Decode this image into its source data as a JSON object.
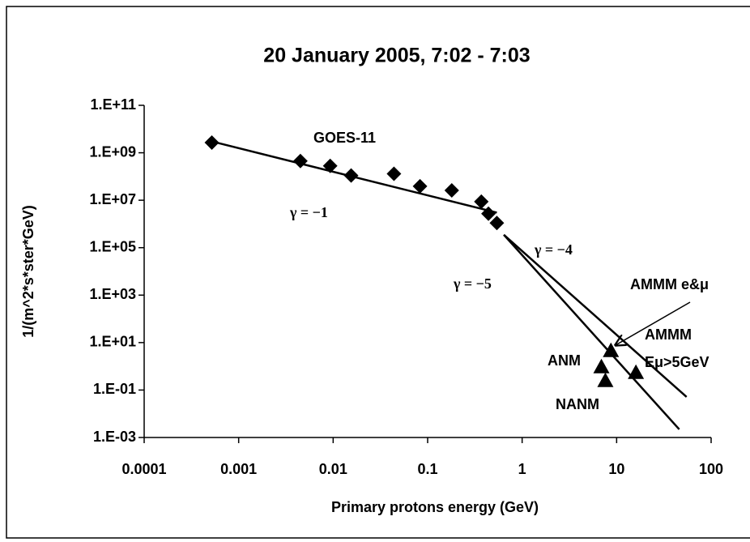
{
  "chart_data": {
    "type": "scatter",
    "title": "20 January 2005, 7:02 - 7:03",
    "x_label": "Primary protons energy (GeV)",
    "y_label": "1/(m^2*s*ster*GeV)",
    "log_x": true,
    "log_y": true,
    "grid": false,
    "xlim": [
      0.0001,
      100
    ],
    "xticks": [
      0.0001,
      0.001,
      0.01,
      0.1,
      1,
      10,
      100
    ],
    "ylim": [
      0.001,
      100000000000
    ],
    "yticks": [
      {
        "value": 0.001,
        "label": "1.E-03"
      },
      {
        "value": 0.1,
        "label": "1.E-01"
      },
      {
        "value": 10,
        "label": "1.E+01"
      },
      {
        "value": 1000,
        "label": "1.E+03"
      },
      {
        "value": 100000,
        "label": "1.E+05"
      },
      {
        "value": 10000000,
        "label": "1.E+07"
      },
      {
        "value": 1000000000,
        "label": "1.E+09"
      },
      {
        "value": 100000000000,
        "label": "1.E+11"
      }
    ],
    "series": [
      {
        "marker": "diamond",
        "line": false,
        "color": "#000000",
        "x": [
          0.00052,
          0.0045,
          0.0093,
          0.0155,
          0.044,
          0.083,
          0.18,
          0.37,
          0.44,
          0.54
        ],
        "values": [
          2700000000,
          450000000,
          280000000,
          110000000,
          130000000,
          39000000,
          26000000,
          8700000,
          2700000,
          1100000
        ]
      },
      {
        "marker": "triangle",
        "line": false,
        "color": "#000000",
        "x": [
          6.9,
          7.6,
          8.7,
          16
        ],
        "values": [
          0.95,
          0.25,
          4.6,
          0.55
        ]
      },
      {
        "marker": "none",
        "line": true,
        "color": "#000000",
        "x": [
          0.00052,
          0.54
        ],
        "values": [
          3000000000,
          3000000
        ]
      },
      {
        "marker": "none",
        "line": true,
        "color": "#000000",
        "x": [
          0.64,
          55
        ],
        "values": [
          350000,
          0.051
        ]
      },
      {
        "marker": "none",
        "line": true,
        "color": "#000000",
        "x": [
          0.64,
          46
        ],
        "values": [
          350000,
          0.0022
        ]
      }
    ],
    "annotations": [
      "GOES-11",
      "γ = −1",
      "γ = −4",
      "γ = −5",
      "AMMM e&μ",
      "AMMM",
      "Eμ>5GeV",
      "ANM",
      "NANM"
    ]
  }
}
